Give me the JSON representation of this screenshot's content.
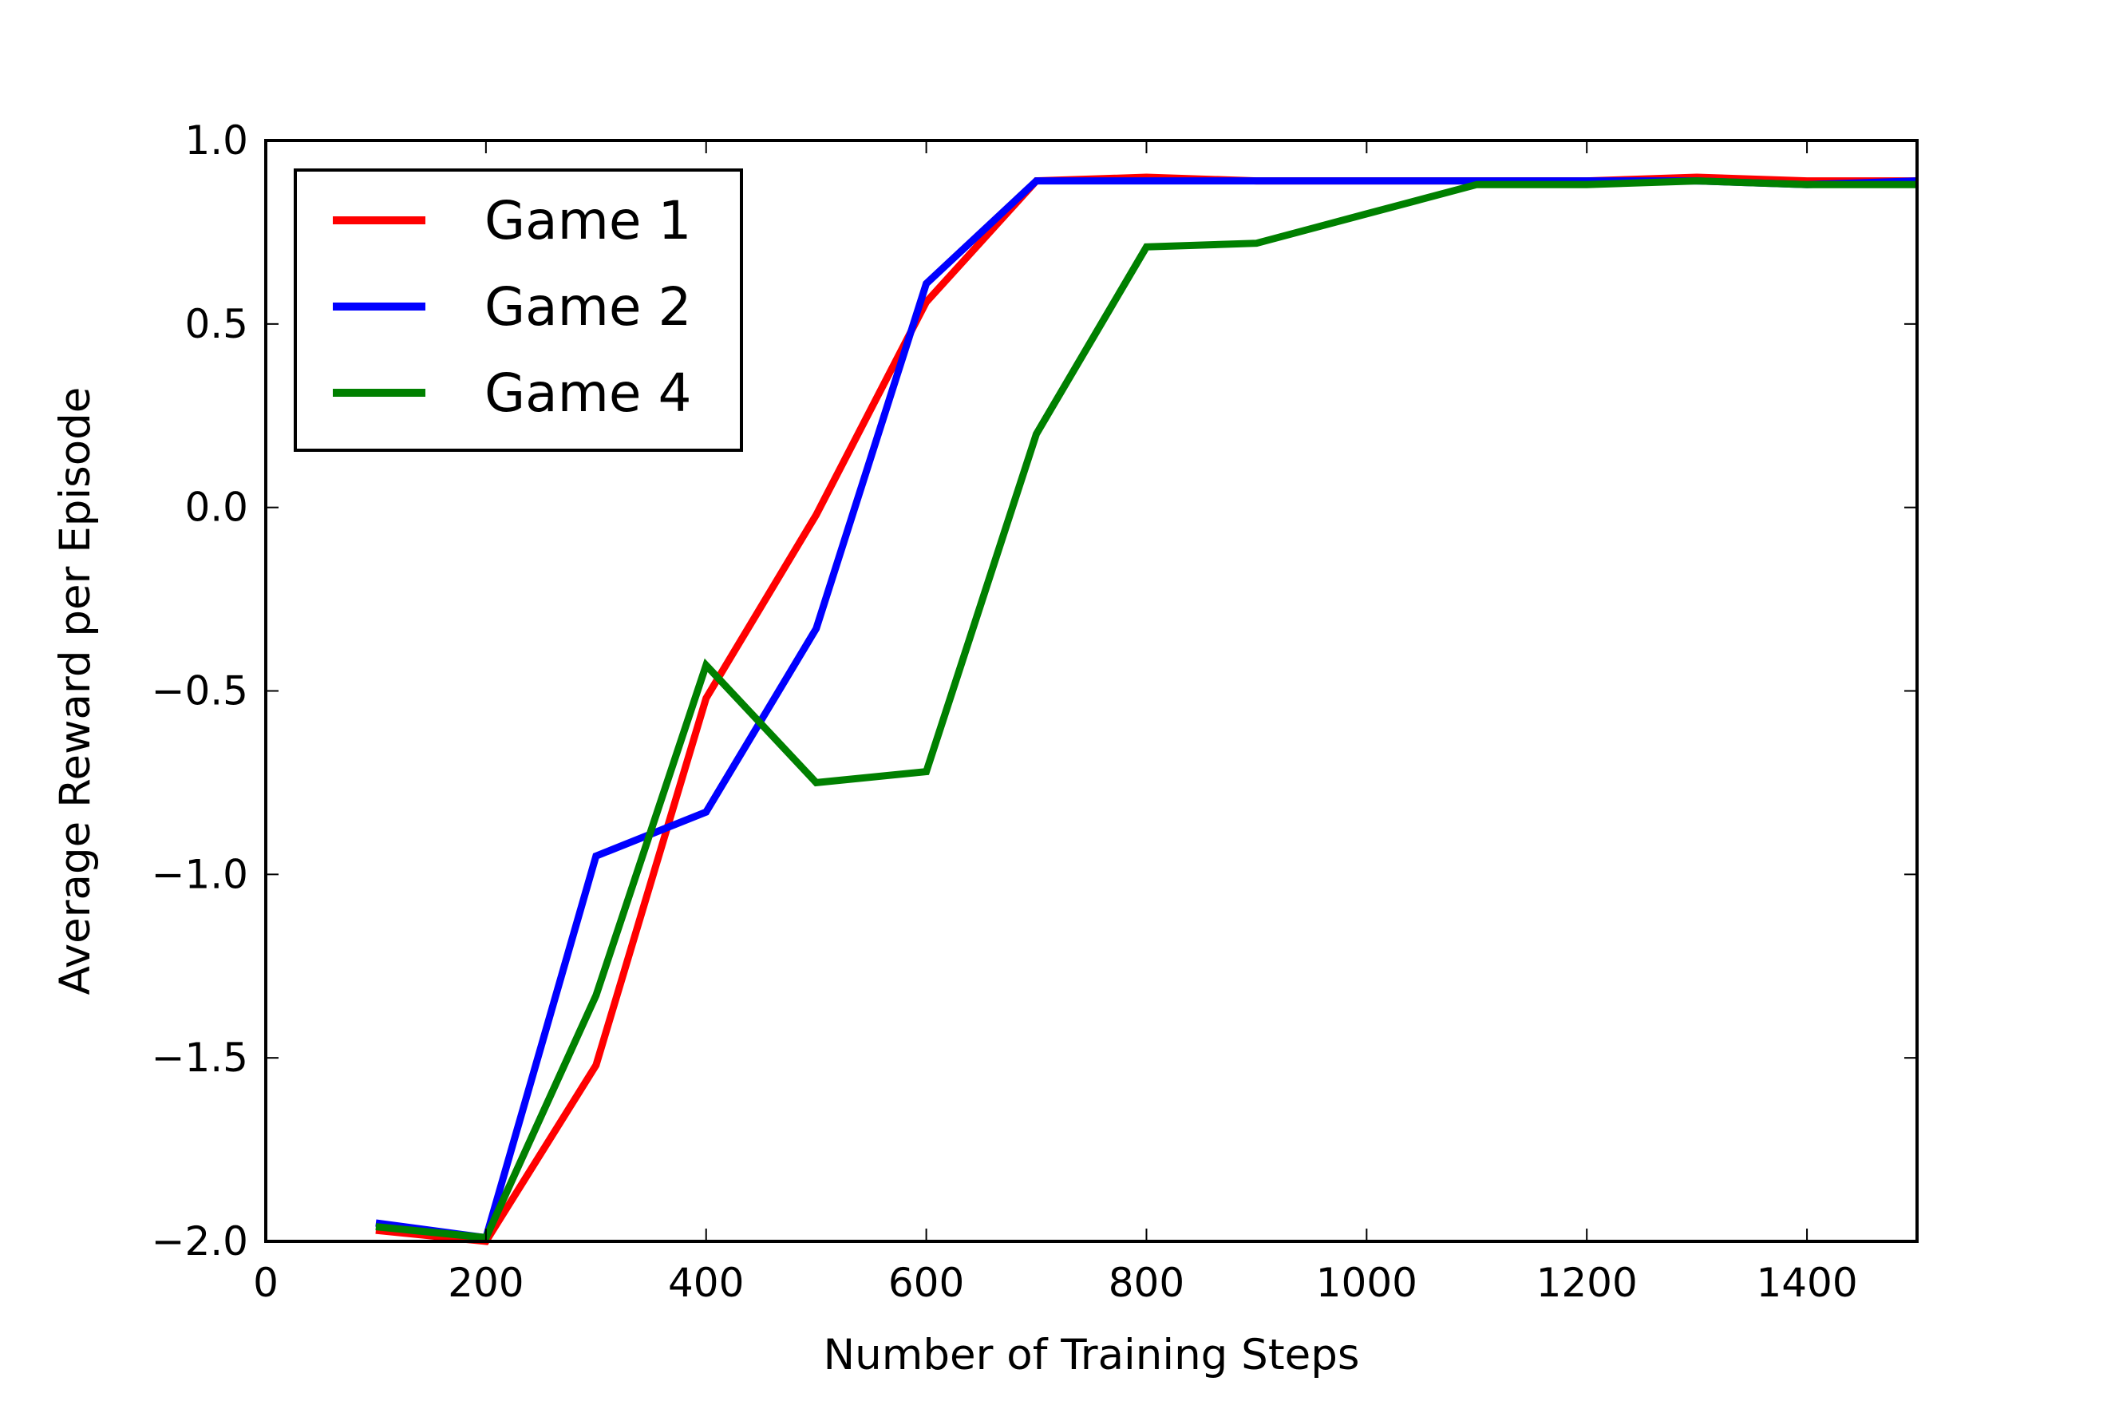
{
  "chart_data": {
    "type": "line",
    "title": "",
    "xlabel": "Number of  Training Steps",
    "ylabel": "Average Reward per Episode",
    "xlim": [
      0,
      1500
    ],
    "ylim": [
      -2.0,
      1.0
    ],
    "xticks": [
      0,
      200,
      400,
      600,
      800,
      1000,
      1200,
      1400
    ],
    "xtick_labels": [
      "0",
      "200",
      "400",
      "600",
      "800",
      "1000",
      "1200",
      "1400"
    ],
    "yticks": [
      -2.0,
      -1.5,
      -1.0,
      -0.5,
      0.0,
      0.5,
      1.0
    ],
    "ytick_labels": [
      "−2.0",
      "−1.5",
      "−1.0",
      "−0.5",
      "0.0",
      "0.5",
      "1.0"
    ],
    "grid": false,
    "legend_position": "top-left",
    "series": [
      {
        "name": "Game 1",
        "color": "#ff0000",
        "x": [
          100,
          200,
          300,
          400,
          500,
          600,
          700,
          800,
          900,
          1000,
          1100,
          1200,
          1300,
          1400,
          1500
        ],
        "y": [
          -1.97,
          -2.0,
          -1.52,
          -0.52,
          -0.02,
          0.56,
          0.89,
          0.9,
          0.89,
          0.89,
          0.89,
          0.89,
          0.9,
          0.89,
          0.89
        ]
      },
      {
        "name": "Game 2",
        "color": "#0000ff",
        "x": [
          100,
          200,
          300,
          400,
          500,
          600,
          700,
          800,
          900,
          1000,
          1100,
          1200,
          1300,
          1400,
          1500
        ],
        "y": [
          -1.95,
          -1.99,
          -0.95,
          -0.83,
          -0.33,
          0.61,
          0.89,
          0.89,
          0.89,
          0.89,
          0.89,
          0.89,
          0.89,
          0.88,
          0.89
        ]
      },
      {
        "name": "Game 4",
        "color": "#008000",
        "x": [
          100,
          200,
          300,
          400,
          500,
          600,
          700,
          800,
          900,
          1000,
          1100,
          1200,
          1300,
          1400,
          1500
        ],
        "y": [
          -1.96,
          -1.99,
          -1.33,
          -0.43,
          -0.75,
          -0.72,
          0.2,
          0.71,
          0.72,
          0.8,
          0.88,
          0.88,
          0.89,
          0.88,
          0.88
        ]
      }
    ]
  }
}
